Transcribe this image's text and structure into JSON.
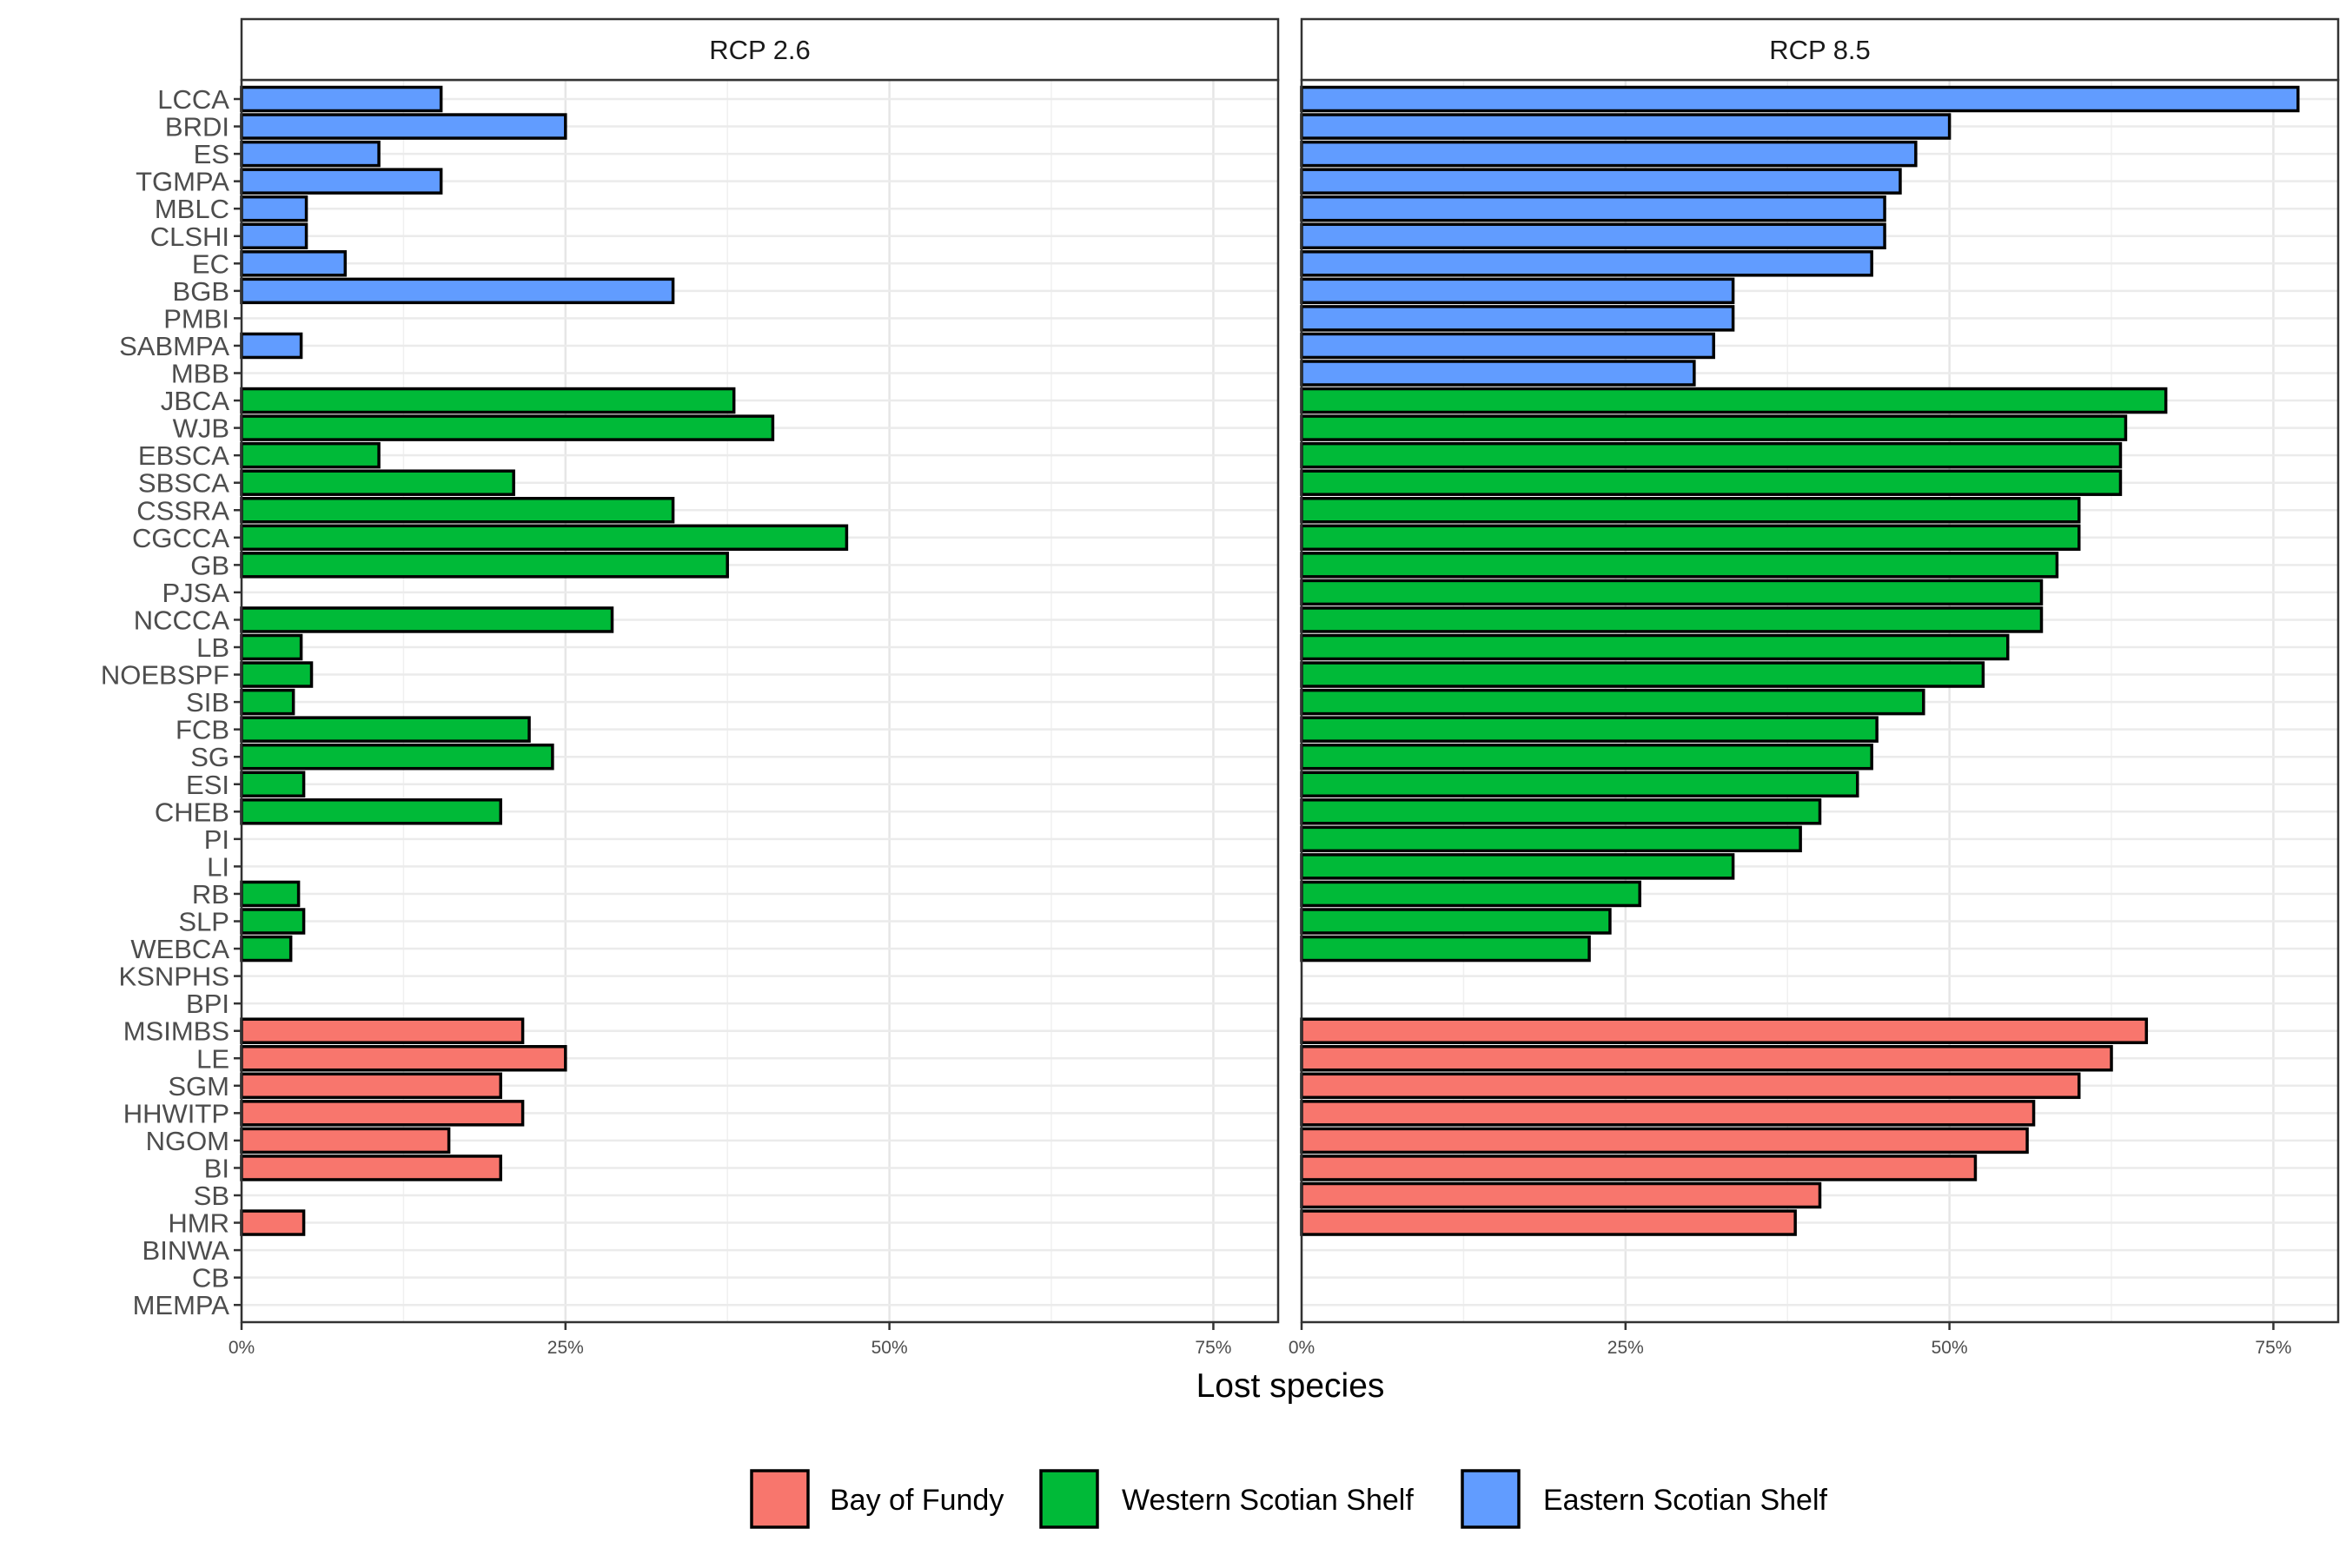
{
  "chart_data": {
    "type": "bar",
    "orientation": "horizontal",
    "xlabel": "Lost species",
    "ylabel": "",
    "xlim": [
      0,
      0.8
    ],
    "x_ticks": [
      0,
      0.25,
      0.5,
      0.75
    ],
    "x_tick_labels": [
      "0%",
      "25%",
      "50%",
      "75%"
    ],
    "grid": true,
    "legend_position": "bottom",
    "categories": [
      "LCCA",
      "BRDI",
      "ES",
      "TGMPA",
      "MBLC",
      "CLSHI",
      "EC",
      "BGB",
      "PMBI",
      "SABMPA",
      "MBB",
      "JBCA",
      "WJB",
      "EBSCA",
      "SBSCA",
      "CSSRA",
      "CGCCA",
      "GB",
      "PJSA",
      "NCCCA",
      "LB",
      "NOEBSPF",
      "SIB",
      "FCB",
      "SG",
      "ESI",
      "CHEB",
      "PI",
      "LI",
      "RB",
      "SLP",
      "WEBCA",
      "KSNPHS",
      "BPI",
      "MSIMBS",
      "LE",
      "SGM",
      "HHWITP",
      "NGOM",
      "BI",
      "SB",
      "HMR",
      "BINWA",
      "CB",
      "MEMPA"
    ],
    "regions": [
      "Eastern Scotian Shelf",
      "Eastern Scotian Shelf",
      "Eastern Scotian Shelf",
      "Eastern Scotian Shelf",
      "Eastern Scotian Shelf",
      "Eastern Scotian Shelf",
      "Eastern Scotian Shelf",
      "Eastern Scotian Shelf",
      "Eastern Scotian Shelf",
      "Eastern Scotian Shelf",
      "Eastern Scotian Shelf",
      "Western Scotian Shelf",
      "Western Scotian Shelf",
      "Western Scotian Shelf",
      "Western Scotian Shelf",
      "Western Scotian Shelf",
      "Western Scotian Shelf",
      "Western Scotian Shelf",
      "Western Scotian Shelf",
      "Western Scotian Shelf",
      "Western Scotian Shelf",
      "Western Scotian Shelf",
      "Western Scotian Shelf",
      "Western Scotian Shelf",
      "Western Scotian Shelf",
      "Western Scotian Shelf",
      "Western Scotian Shelf",
      "Western Scotian Shelf",
      "Western Scotian Shelf",
      "Western Scotian Shelf",
      "Western Scotian Shelf",
      "Western Scotian Shelf",
      "Western Scotian Shelf",
      "Western Scotian Shelf",
      "Bay of Fundy",
      "Bay of Fundy",
      "Bay of Fundy",
      "Bay of Fundy",
      "Bay of Fundy",
      "Bay of Fundy",
      "Bay of Fundy",
      "Bay of Fundy",
      "Bay of Fundy",
      "Bay of Fundy",
      "Bay of Fundy"
    ],
    "panels": [
      {
        "title": "RCP 2.6",
        "values": [
          0.154,
          0.25,
          0.106,
          0.154,
          0.05,
          0.05,
          0.08,
          0.333,
          0,
          0.046,
          0,
          0.38,
          0.41,
          0.106,
          0.21,
          0.333,
          0.467,
          0.375,
          0,
          0.286,
          0.046,
          0.054,
          0.04,
          0.222,
          0.24,
          0.048,
          0.2,
          0,
          0,
          0.044,
          0.048,
          0.038,
          0,
          0,
          0.217,
          0.25,
          0.2,
          0.217,
          0.16,
          0.2,
          0,
          0.048,
          0,
          0,
          0
        ]
      },
      {
        "title": "RCP 8.5",
        "values": [
          0.769,
          0.5,
          0.474,
          0.462,
          0.45,
          0.45,
          0.44,
          0.333,
          0.333,
          0.318,
          0.303,
          0.667,
          0.636,
          0.632,
          0.632,
          0.6,
          0.6,
          0.583,
          0.571,
          0.571,
          0.545,
          0.526,
          0.48,
          0.444,
          0.44,
          0.429,
          0.4,
          0.385,
          0.333,
          0.261,
          0.238,
          0.222,
          0,
          0,
          0.652,
          0.625,
          0.6,
          0.565,
          0.56,
          0.52,
          0.4,
          0.381,
          0,
          0,
          0
        ]
      }
    ],
    "legend": [
      {
        "name": "Bay of Fundy",
        "color": "#F8766D"
      },
      {
        "name": "Western Scotian Shelf",
        "color": "#00BA38"
      },
      {
        "name": "Eastern Scotian Shelf",
        "color": "#619CFF"
      }
    ]
  }
}
